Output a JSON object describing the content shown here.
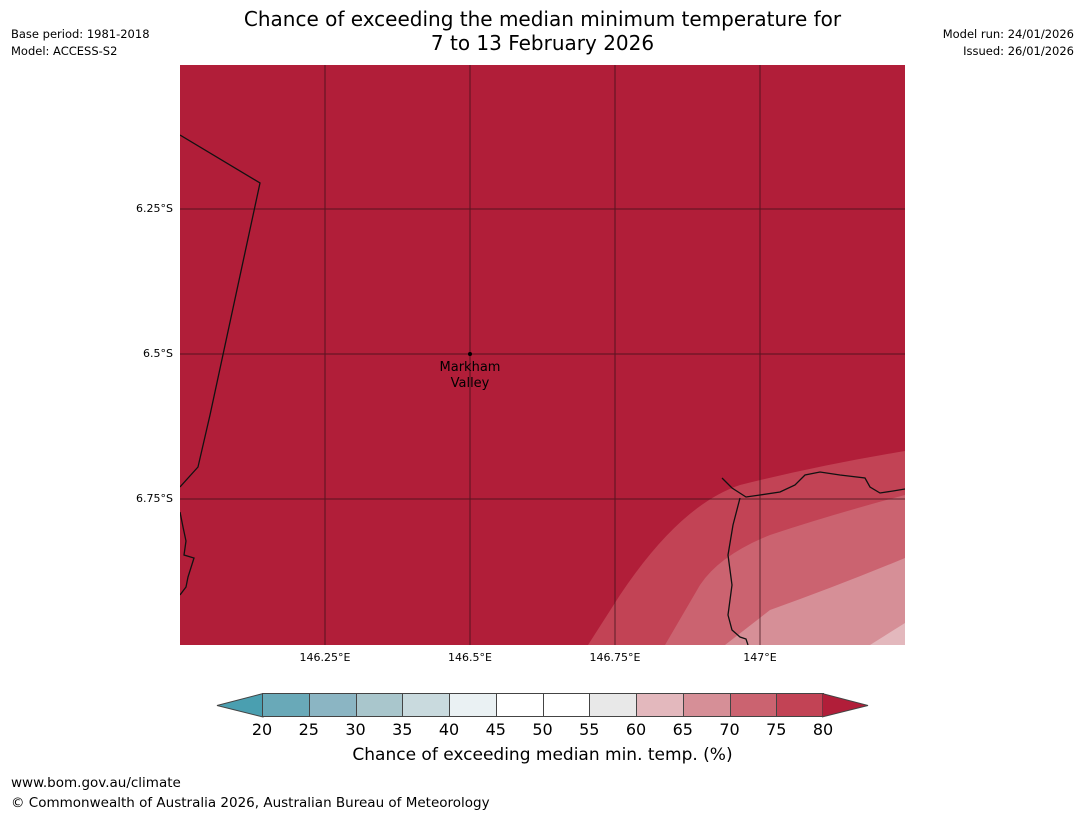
{
  "title": {
    "line1": "Chance of exceeding the median minimum temperature for",
    "line2": "7 to 13 February 2026"
  },
  "meta_left": {
    "base_period": "Base period: 1981-2018",
    "model": "Model: ACCESS-S2"
  },
  "meta_right": {
    "model_run": "Model run: 24/01/2026",
    "issued": "Issued: 26/01/2026"
  },
  "map": {
    "lat_ticks": [
      "6.25°S",
      "6.5°S",
      "6.75°S"
    ],
    "lon_ticks": [
      "146.25°E",
      "146.5°E",
      "146.75°E",
      "147°E"
    ],
    "place": {
      "name_line1": "Markham",
      "name_line2": "Valley"
    },
    "colors": {
      "band_80": "#b11e39",
      "band_75": "#c24355",
      "band_70": "#cb6370",
      "band_65": "#d68f97",
      "band_60": "#e3b8bd"
    }
  },
  "colorbar": {
    "ticks": [
      "20",
      "25",
      "30",
      "35",
      "40",
      "45",
      "50",
      "55",
      "60",
      "65",
      "70",
      "75",
      "80"
    ],
    "colors": [
      "#69a9b8",
      "#8bb5c3",
      "#a9c6cc",
      "#c9dade",
      "#eaf1f3",
      "#ffffff",
      "#ffffff",
      "#e8e8e8",
      "#e3b8bd",
      "#d68f97",
      "#cb6370",
      "#c24355"
    ],
    "under_color": "#4a9fb0",
    "over_color": "#b11e39",
    "label": "Chance of exceeding median min. temp. (%)"
  },
  "footer": {
    "url": "www.bom.gov.au/climate",
    "copyright": "© Commonwealth of Australia 2026, Australian Bureau of Meteorology"
  }
}
